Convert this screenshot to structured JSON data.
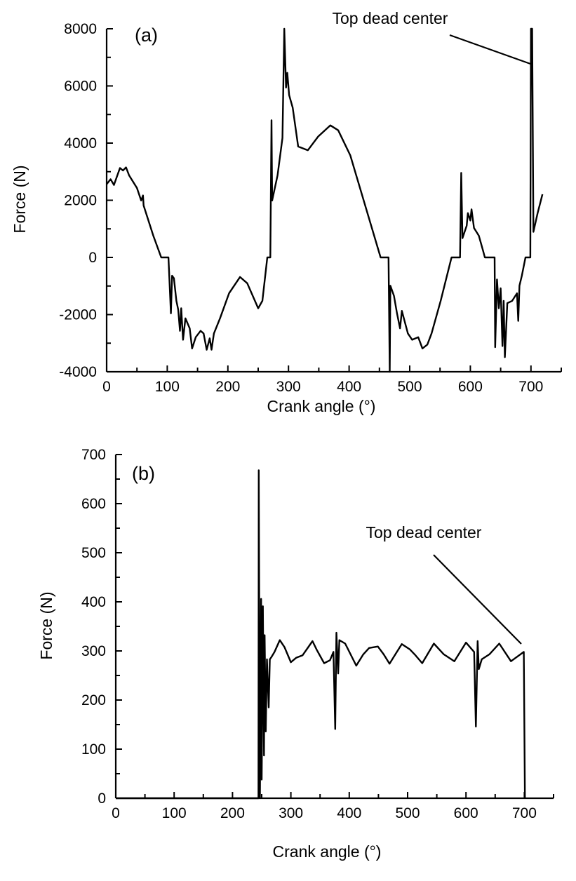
{
  "chart_data": [
    {
      "type": "line",
      "panel_label": "(a)",
      "xlabel": "Crank angle (°)",
      "ylabel": "Force (N)",
      "xlim": [
        0,
        750
      ],
      "ylim": [
        -4000,
        8000
      ],
      "xticks": [
        0,
        100,
        200,
        300,
        400,
        500,
        600,
        700
      ],
      "yticks": [
        -4000,
        -2000,
        0,
        2000,
        4000,
        6000,
        8000
      ],
      "x_minor_step": 50,
      "y_minor_step": 1000,
      "grid": false,
      "annotation": "Top dead center",
      "series": [
        {
          "name": "Force",
          "color": "#000000",
          "points": [
            [
              0,
              2561
            ],
            [
              6.5,
              2737
            ],
            [
              12,
              2535
            ],
            [
              22,
              3130
            ],
            [
              27,
              3040
            ],
            [
              32,
              3150
            ],
            [
              37,
              2870
            ],
            [
              50,
              2430
            ],
            [
              57,
              1990
            ],
            [
              60,
              2170
            ],
            [
              61,
              1815
            ],
            [
              77,
              760
            ],
            [
              90,
              0
            ],
            [
              102,
              0
            ],
            [
              106,
              -1956
            ],
            [
              108,
              -640
            ],
            [
              111,
              -730
            ],
            [
              115,
              -1520
            ],
            [
              118,
              -1825
            ],
            [
              121,
              -2570
            ],
            [
              123,
              -1780
            ],
            [
              126,
              -2880
            ],
            [
              130,
              -2130
            ],
            [
              137,
              -2480
            ],
            [
              141,
              -3185
            ],
            [
              147,
              -2790
            ],
            [
              155,
              -2570
            ],
            [
              160,
              -2660
            ],
            [
              165,
              -3230
            ],
            [
              170,
              -2830
            ],
            [
              173,
              -3230
            ],
            [
              177,
              -2660
            ],
            [
              187,
              -2130
            ],
            [
              202,
              -1255
            ],
            [
              220,
              -684
            ],
            [
              232,
              -904
            ],
            [
              250,
              -1780
            ],
            [
              257,
              -1520
            ],
            [
              265,
              0
            ],
            [
              270,
              0
            ],
            [
              272,
              4800
            ],
            [
              273,
              1990
            ],
            [
              282,
              2870
            ],
            [
              290,
              4180
            ],
            [
              293,
              8000
            ],
            [
              296,
              5940
            ],
            [
              298,
              6460
            ],
            [
              301,
              5680
            ],
            [
              307,
              5240
            ],
            [
              316,
              3880
            ],
            [
              332,
              3750
            ],
            [
              349,
              4230
            ],
            [
              369,
              4620
            ],
            [
              382,
              4450
            ],
            [
              402,
              3570
            ],
            [
              452,
              0
            ],
            [
              465,
              0
            ],
            [
              467,
              -4000
            ],
            [
              468,
              -990
            ],
            [
              474,
              -1340
            ],
            [
              479,
              -1960
            ],
            [
              484,
              -2480
            ],
            [
              487,
              -1870
            ],
            [
              497,
              -2660
            ],
            [
              504,
              -2880
            ],
            [
              514,
              -2790
            ],
            [
              521,
              -3185
            ],
            [
              529,
              -3050
            ],
            [
              536,
              -2660
            ],
            [
              551,
              -1520
            ],
            [
              569,
              0
            ],
            [
              583,
              0
            ],
            [
              585,
              2960
            ],
            [
              587,
              675
            ],
            [
              594,
              1110
            ],
            [
              596,
              1550
            ],
            [
              600,
              1290
            ],
            [
              602,
              1680
            ],
            [
              606,
              1030
            ],
            [
              614,
              760
            ],
            [
              621,
              237
            ],
            [
              624,
              0
            ],
            [
              640,
              0
            ],
            [
              641,
              -3140
            ],
            [
              644,
              -770
            ],
            [
              647,
              -1780
            ],
            [
              650,
              -1080
            ],
            [
              653,
              -3100
            ],
            [
              655,
              -1520
            ],
            [
              657,
              -3490
            ],
            [
              661,
              -1600
            ],
            [
              669,
              -1520
            ],
            [
              677,
              -1255
            ],
            [
              679,
              -2220
            ],
            [
              681,
              -990
            ],
            [
              685,
              -640
            ],
            [
              691,
              0
            ],
            [
              699,
              0
            ],
            [
              700,
              8000
            ],
            [
              702,
              8000
            ],
            [
              704,
              895
            ],
            [
              711,
              1550
            ],
            [
              719,
              2210
            ]
          ]
        }
      ]
    },
    {
      "type": "line",
      "panel_label": "(b)",
      "xlabel": "Crank angle (°)",
      "ylabel": "Force (N)",
      "xlim": [
        0,
        750
      ],
      "ylim": [
        0,
        700
      ],
      "xticks": [
        0,
        100,
        200,
        300,
        400,
        500,
        600,
        700
      ],
      "yticks": [
        0,
        100,
        200,
        300,
        400,
        500,
        600,
        700
      ],
      "x_minor_step": 50,
      "y_minor_step": 50,
      "grid": false,
      "annotation": "Top dead center",
      "series": [
        {
          "name": "Force",
          "color": "#000000",
          "points": [
            [
              0,
              0
            ],
            [
              244.5,
              0
            ],
            [
              245,
              668
            ],
            [
              247,
              0
            ],
            [
              249,
              406
            ],
            [
              250,
              38
            ],
            [
              252,
              391
            ],
            [
              254,
              87
            ],
            [
              255,
              332
            ],
            [
              257,
              136
            ],
            [
              259,
              283
            ],
            [
              262,
              185
            ],
            [
              264,
              283
            ],
            [
              267,
              288
            ],
            [
              272,
              298
            ],
            [
              281,
              322
            ],
            [
              289,
              308
            ],
            [
              300,
              277
            ],
            [
              309,
              286
            ],
            [
              320,
              291
            ],
            [
              337,
              320
            ],
            [
              344,
              303
            ],
            [
              357,
              275
            ],
            [
              367,
              281
            ],
            [
              373,
              298
            ],
            [
              376,
              141
            ],
            [
              378,
              337
            ],
            [
              381,
              254
            ],
            [
              383,
              322
            ],
            [
              393,
              315
            ],
            [
              412,
              270
            ],
            [
              424,
              293
            ],
            [
              434,
              306
            ],
            [
              449,
              309
            ],
            [
              459,
              293
            ],
            [
              469,
              274
            ],
            [
              479,
              293
            ],
            [
              490,
              314
            ],
            [
              504,
              303
            ],
            [
              512,
              293
            ],
            [
              525,
              275
            ],
            [
              545,
              315
            ],
            [
              562,
              293
            ],
            [
              580,
              279
            ],
            [
              600,
              317
            ],
            [
              614,
              298
            ],
            [
              617,
              146
            ],
            [
              620,
              320
            ],
            [
              622,
              263
            ],
            [
              627,
              283
            ],
            [
              640,
              293
            ],
            [
              657,
              315
            ],
            [
              677,
              279
            ],
            [
              699,
              298
            ],
            [
              701,
              0
            ]
          ]
        }
      ]
    }
  ]
}
